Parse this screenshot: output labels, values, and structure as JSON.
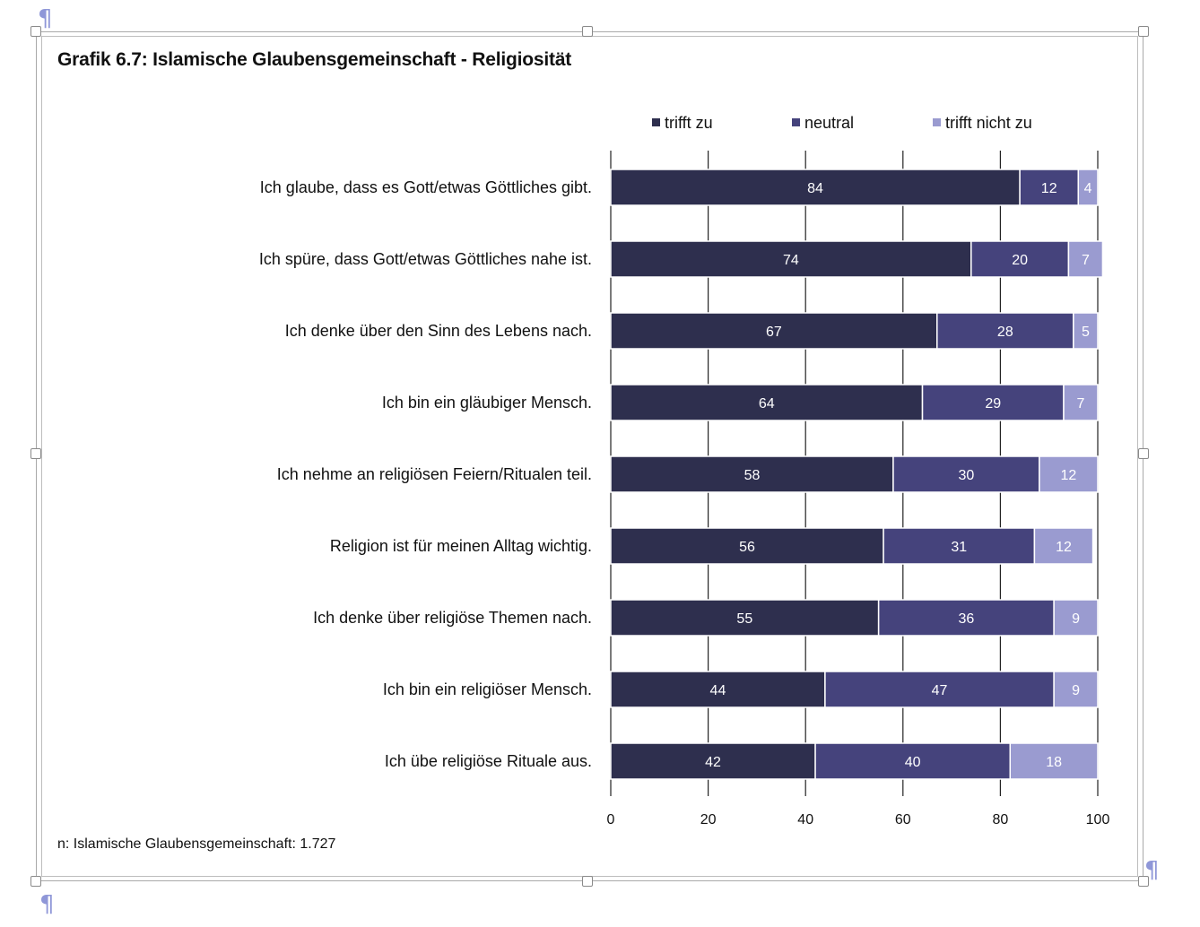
{
  "title": "Grafik 6.7: Islamische Glaubensgemeinschaft - Religiosität",
  "footnote": "n: Islamische Glaubensgemeinschaft: 1.727",
  "pilcrow": "¶",
  "colors": {
    "trifft_zu": "#2e2f4e",
    "neutral": "#45437c",
    "trifft_nicht_zu": "#9a9bd0"
  },
  "chart_data": {
    "type": "bar",
    "orientation": "horizontal",
    "stacked": true,
    "title": "Grafik 6.7: Islamische Glaubensgemeinschaft - Religiosität",
    "categories": [
      "Ich glaube, dass es Gott/etwas Göttliches gibt.",
      "Ich spüre, dass Gott/etwas Göttliches nahe ist.",
      "Ich denke über den Sinn des Lebens nach.",
      "Ich bin ein gläubiger Mensch.",
      "Ich nehme an religiösen Feiern/Ritualen teil.",
      "Religion ist für meinen Alltag wichtig.",
      "Ich denke über religiöse Themen nach.",
      "Ich bin ein religiöser Mensch.",
      "Ich übe religiöse Rituale aus."
    ],
    "series": [
      {
        "name": "trifft zu",
        "color": "#2e2f4e",
        "values": [
          84,
          74,
          67,
          64,
          58,
          56,
          55,
          44,
          42
        ]
      },
      {
        "name": "neutral",
        "color": "#45437c",
        "values": [
          12,
          20,
          28,
          29,
          30,
          31,
          36,
          47,
          40
        ]
      },
      {
        "name": "trifft nicht zu",
        "color": "#9a9bd0",
        "values": [
          4,
          7,
          5,
          7,
          12,
          12,
          9,
          9,
          18
        ]
      }
    ],
    "xlim": [
      0,
      100
    ],
    "xticks": [
      0,
      20,
      40,
      60,
      80,
      100
    ],
    "grid": true,
    "legend": "top"
  }
}
